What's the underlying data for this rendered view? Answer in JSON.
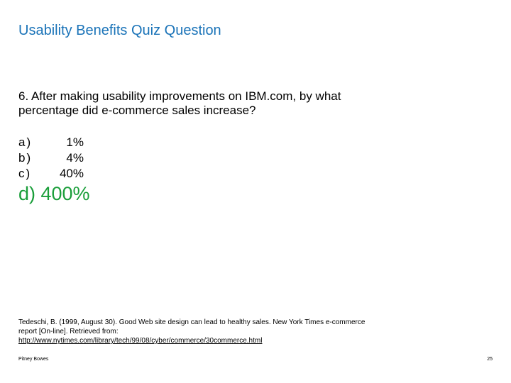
{
  "slide": {
    "title": "Usability Benefits Quiz Question",
    "question": "6. After making usability improvements on IBM.com, by what percentage did e-commerce sales increase?",
    "options": [
      {
        "letter": "a)",
        "value": "1%"
      },
      {
        "letter": "b)",
        "value": "4%"
      },
      {
        "letter": "c)",
        "value": "40%"
      }
    ],
    "answer": "d) 400%",
    "citation": {
      "text": "Tedeschi, B. (1999, August 30). Good Web site design can lead to healthy sales. New York Times e-commerce report [On-line]. Retrieved from:",
      "link": "http://www.nytimes.com/library/tech/99/08/cyber/commerce/30commerce.html"
    },
    "footer": {
      "author": "Pitney Bowes",
      "page_number": "25"
    }
  },
  "colors": {
    "title": "#1a73b8",
    "answer": "#1a9e3a"
  }
}
